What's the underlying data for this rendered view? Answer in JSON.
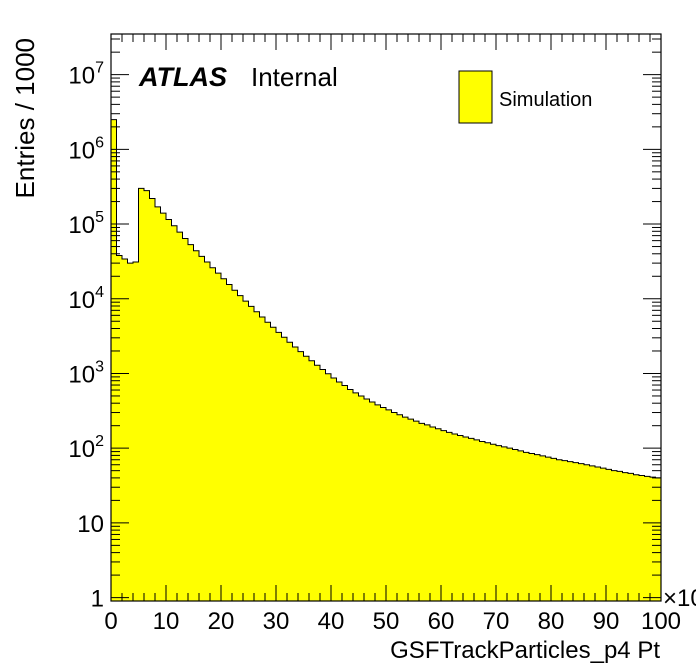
{
  "chart_data": {
    "type": "bar",
    "xlabel": "GSFTrackParticles_p4 Pt",
    "ylabel": "Entries / 1000",
    "x_exponent_label": "×10",
    "experiment": "ATLAS",
    "status": "Internal",
    "legend": {
      "label": "Simulation",
      "color": "#ffff00",
      "placement": "top-right"
    },
    "xlim": [
      0,
      100
    ],
    "ylim": [
      0.9,
      35000000
    ],
    "log_y": true,
    "bin_width": 1,
    "x_ticks": [
      "0",
      "10",
      "20",
      "30",
      "40",
      "50",
      "60",
      "70",
      "80",
      "90",
      "100"
    ],
    "y_ticks": [
      {
        "value": 1,
        "base": "1",
        "exp": ""
      },
      {
        "value": 10,
        "base": "10",
        "exp": ""
      },
      {
        "value": 100,
        "base": "10",
        "exp": "2"
      },
      {
        "value": 1000,
        "base": "10",
        "exp": "3"
      },
      {
        "value": 10000,
        "base": "10",
        "exp": "4"
      },
      {
        "value": 100000,
        "base": "10",
        "exp": "5"
      },
      {
        "value": 1000000,
        "base": "10",
        "exp": "6"
      },
      {
        "value": 10000000,
        "base": "10",
        "exp": "7"
      }
    ],
    "values": [
      2500000,
      38000,
      34000,
      30000,
      31000,
      300000,
      280000,
      220000,
      170000,
      140000,
      115000,
      95000,
      78000,
      64000,
      53000,
      44000,
      37000,
      31000,
      26000,
      22000,
      18500,
      15500,
      13000,
      11000,
      9300,
      7900,
      6700,
      5700,
      4850,
      4150,
      3550,
      3050,
      2620,
      2260,
      1960,
      1700,
      1480,
      1290,
      1130,
      990,
      870,
      770,
      690,
      610,
      550,
      500,
      455,
      415,
      380,
      350,
      325,
      300,
      280,
      260,
      245,
      230,
      215,
      205,
      192,
      182,
      172,
      163,
      155,
      148,
      141,
      135,
      129,
      123,
      118,
      113,
      108,
      104,
      100,
      96,
      92,
      88,
      85,
      82,
      79,
      76,
      73,
      70,
      68,
      66,
      64,
      62,
      60,
      58,
      56,
      54,
      52,
      50,
      49,
      47,
      46,
      44,
      43,
      42,
      41,
      40
    ],
    "color": "#ffff00"
  }
}
